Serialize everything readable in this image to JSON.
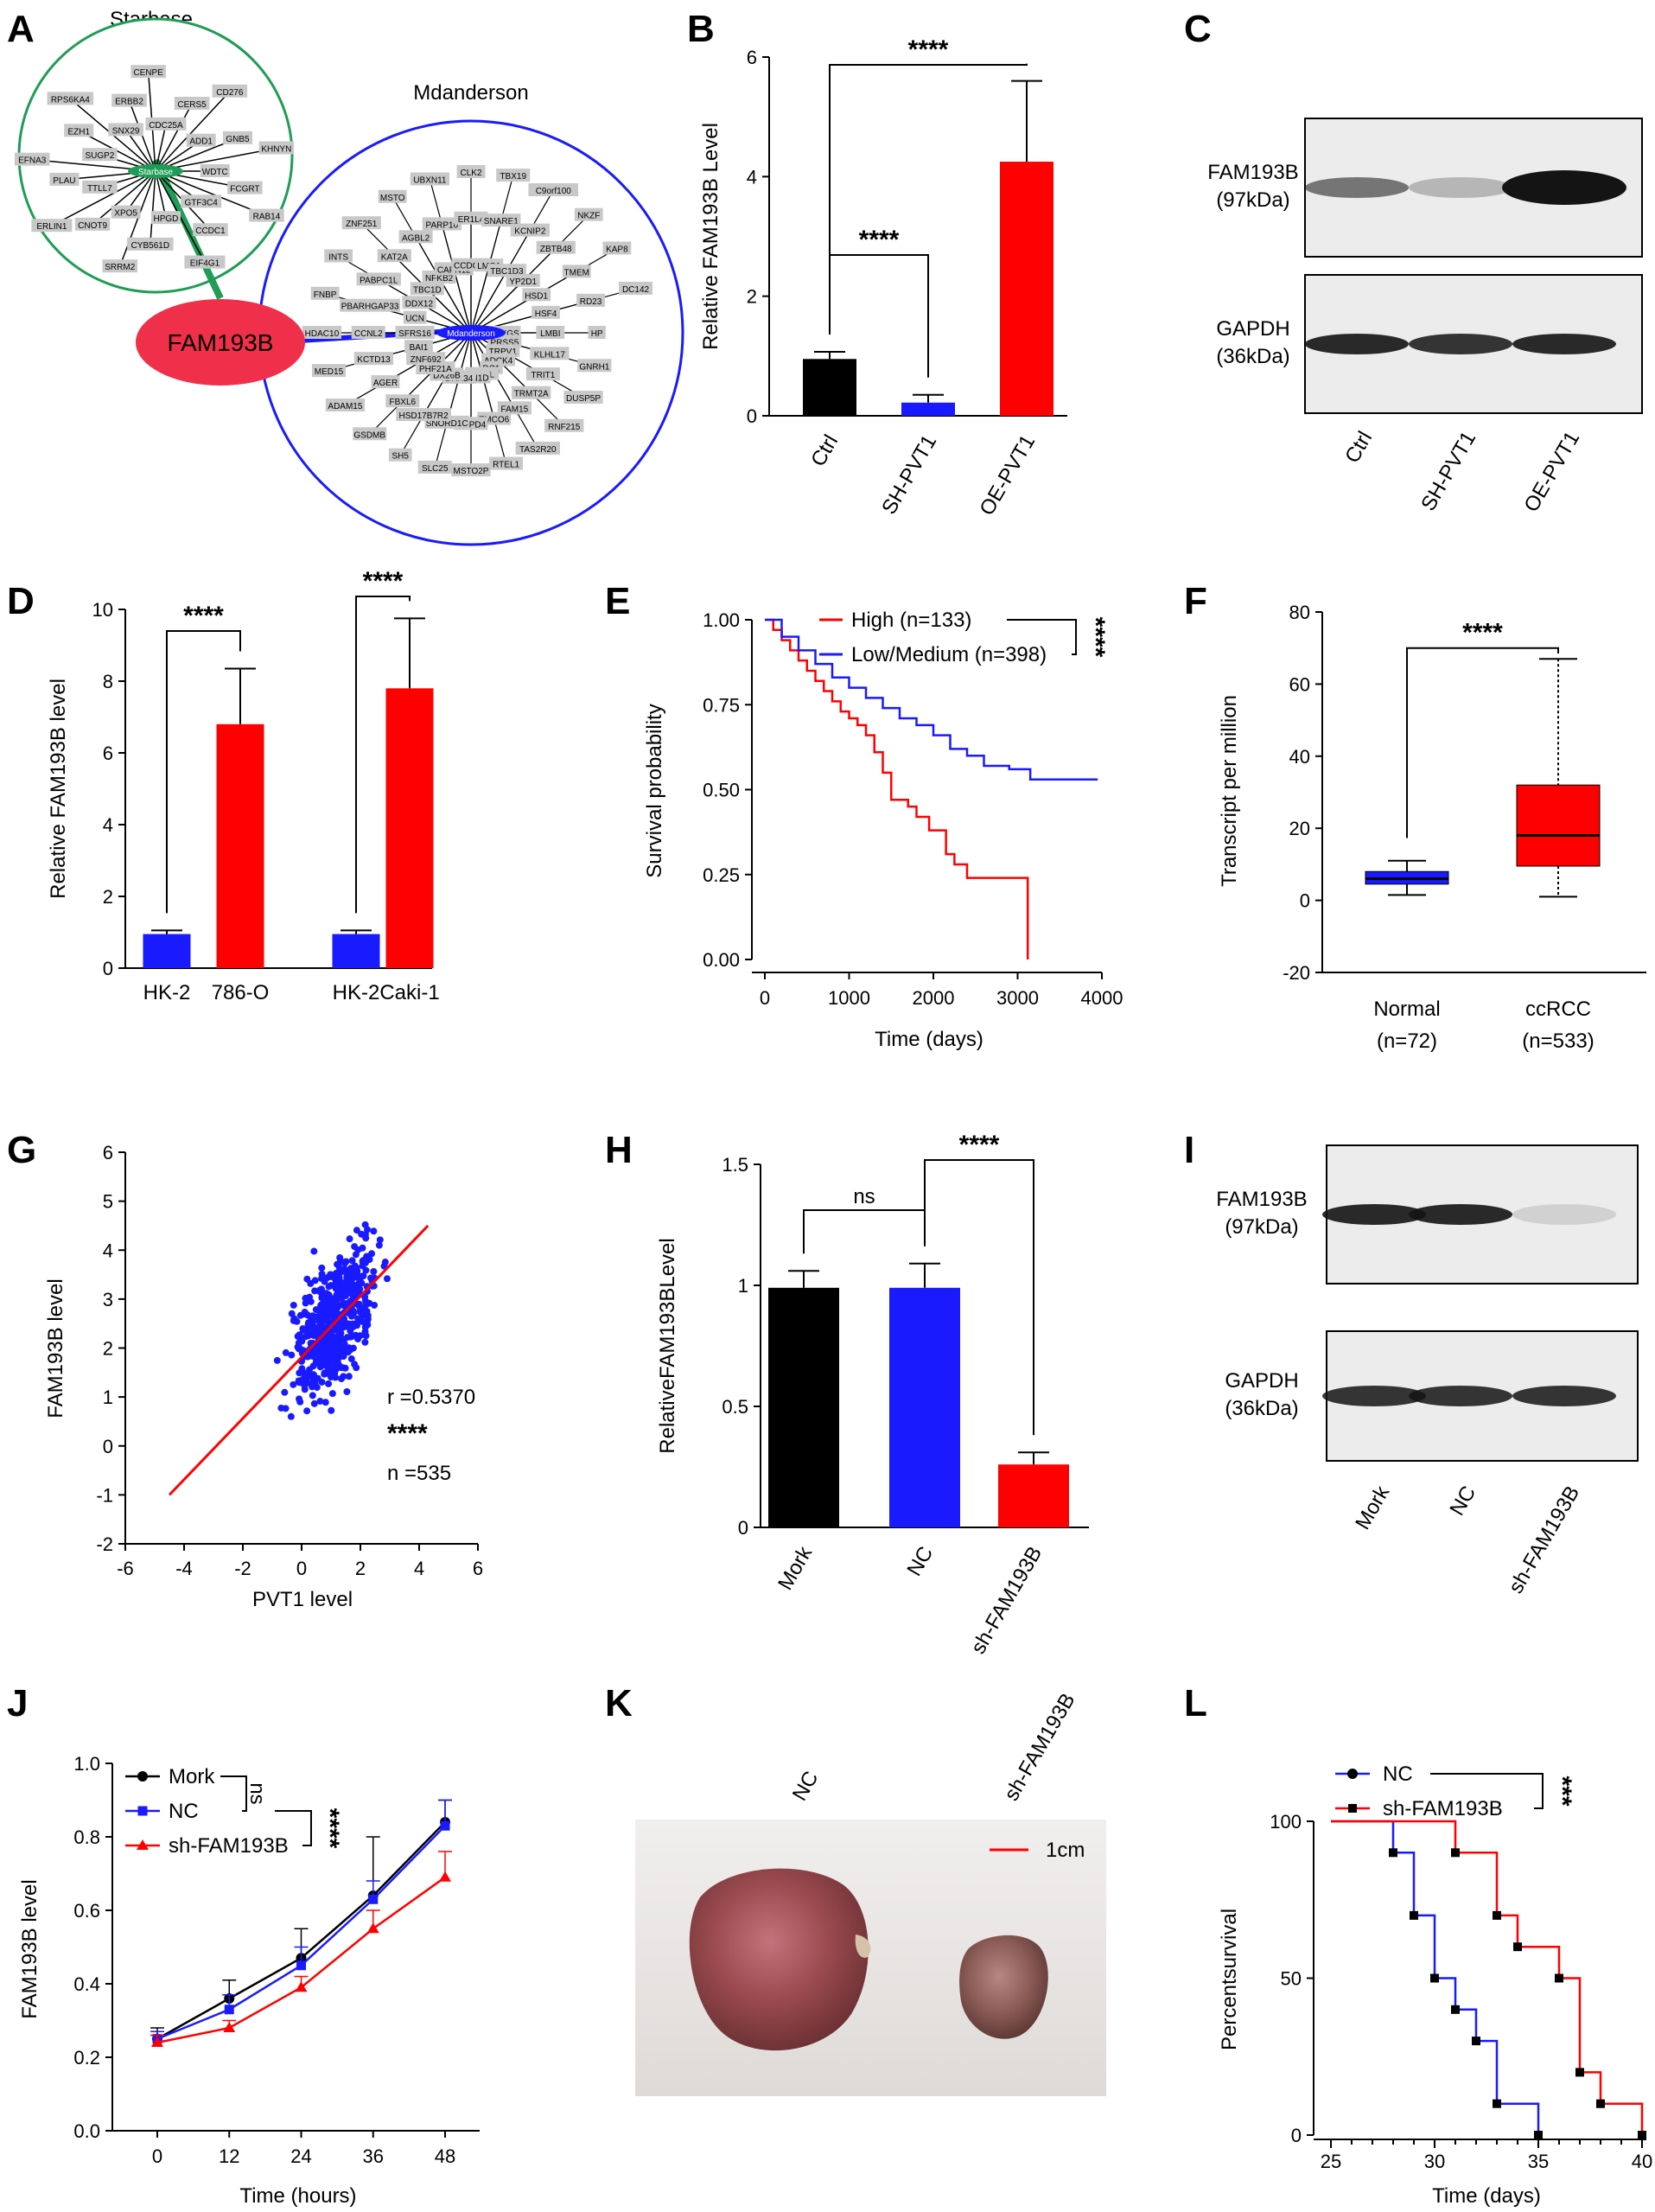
{
  "panel_letters": [
    "A",
    "B",
    "C",
    "D",
    "E",
    "F",
    "G",
    "H",
    "I",
    "J",
    "K",
    "L"
  ],
  "colors": {
    "black": "#000000",
    "blue": "#1a1aff",
    "red": "#ff0000",
    "green": "#1f9c55",
    "node_gray": "#c8c8c8",
    "blot_bg": "#ececec"
  },
  "chart_data": [
    {
      "panel": "A",
      "type": "network",
      "starbase": {
        "title": "Starbase",
        "center": "Starbase",
        "nodes": [
          "WDTC",
          "FCGRT",
          "RAB14",
          "GTF3C4",
          "CCDC1",
          "EIF4G1",
          "HPGD",
          "CYB561D",
          "SRRM2",
          "XPO5",
          "CNOT9",
          "ERLIN1",
          "TTLL7",
          "PLAU",
          "EFNA3",
          "SUGP2",
          "EZH1",
          "RPS6KA4",
          "SNX29",
          "ERBB2",
          "CENPE",
          "CDC25A",
          "CERS5",
          "CD276",
          "ADD1",
          "GNB5",
          "KHNYN"
        ]
      },
      "mdanderson": {
        "title": "Mdanderson",
        "center": "Mdanderson",
        "nodes": [
          "CRYGS",
          "PRSS5",
          "TRPV1",
          "ADCK4",
          "DC1",
          "PPIEL",
          "SCNN1D",
          "DHX34",
          "DX26B",
          "PHF21A",
          "ZNF692",
          "BAI1",
          "SFRS16",
          "UCN",
          "DDX12",
          "TBC1D",
          "NFKB2",
          "CAPN12",
          "CCDC57",
          "LMO1",
          "TBC1D3",
          "YP2D1",
          "HSD1",
          "HSF4",
          "LMBI",
          "KLHL17",
          "TRIT1",
          "TRMT2A",
          "FAM15",
          "TMCO6",
          "SMPD4",
          "SNORD1C",
          "HSD17B7R2",
          "FBXL6",
          "AGER",
          "KCTD13",
          "CCNL2",
          "PBARHGAP33",
          "PABPC1L",
          "KAT2A",
          "AGBL2",
          "PARP10",
          "ER1L4",
          "SNARE1",
          "KCNIP2",
          "ZBTB48",
          "TMEM",
          "RD23",
          "HP",
          "GNRH1",
          "DUSP5P",
          "RNF215",
          "TAS2R20",
          "RTEL1",
          "MSTO2P",
          "SLC25",
          "SH5",
          "GSDMB",
          "ADAM15",
          "MED15",
          "HDAC10",
          "FNBP",
          "INTS",
          "ZNF251",
          "MSTO",
          "UBXN11",
          "CLK2",
          "TBX19",
          "C9orf100",
          "NKZF",
          "KAP8",
          "DC142"
        ]
      },
      "hub": "FAM193B"
    },
    {
      "panel": "B",
      "type": "bar",
      "ylabel": "Relative FAM193B Level",
      "ylim": [
        0,
        6
      ],
      "yticks": [
        0,
        2,
        4,
        6
      ],
      "categories": [
        "Ctrl",
        "SH-PVT1",
        "OE-PVT1"
      ],
      "values": [
        0.95,
        0.22,
        4.25
      ],
      "errors": [
        0.12,
        0.13,
        1.35
      ],
      "colors": [
        "#000000",
        "#1a1aff",
        "#ff0000"
      ],
      "comparisons": [
        {
          "a": 0,
          "b": 1,
          "label": "****"
        },
        {
          "a": 0,
          "b": 2,
          "label": "****"
        }
      ]
    },
    {
      "panel": "C",
      "type": "blot",
      "rows": [
        {
          "label1": "FAM193B",
          "label2": "(97kDa)",
          "bands": [
            0.55,
            0.25,
            1.0
          ]
        },
        {
          "label1": "GAPDH",
          "label2": "(36kDa)",
          "bands": [
            0.9,
            0.85,
            0.9
          ]
        }
      ],
      "lanes": [
        "Ctrl",
        "SH-PVT1",
        "OE-PVT1"
      ]
    },
    {
      "panel": "D",
      "type": "bar",
      "ylabel": "Relative FAM193B level",
      "ylim": [
        0,
        10
      ],
      "yticks": [
        0,
        2,
        4,
        6,
        8,
        10
      ],
      "categories": [
        "HK-2",
        "786-O",
        "HK-2",
        "Caki-1"
      ],
      "values": [
        0.95,
        6.8,
        0.95,
        7.8
      ],
      "errors": [
        0.1,
        1.55,
        0.1,
        1.95
      ],
      "colors": [
        "#1a1aff",
        "#ff0000",
        "#1a1aff",
        "#ff0000"
      ],
      "comparisons": [
        {
          "a": 0,
          "b": 1,
          "label": "****"
        },
        {
          "a": 2,
          "b": 3,
          "label": "****"
        }
      ]
    },
    {
      "panel": "E",
      "type": "line",
      "xlabel": "Time (days)",
      "ylabel": "Survival probability",
      "xlim": [
        0,
        4000
      ],
      "ylim": [
        0,
        1
      ],
      "xticks": [
        0,
        1000,
        2000,
        3000,
        4000
      ],
      "yticks": [
        0,
        0.25,
        0.5,
        0.75,
        1
      ],
      "ytick_labels": [
        "0.00",
        "0.25",
        "0.50",
        "0.75",
        "1.00"
      ],
      "series": [
        {
          "name": "High (n=133)",
          "color": "#ff0000",
          "points": [
            [
              0,
              1
            ],
            [
              100,
              0.97
            ],
            [
              200,
              0.94
            ],
            [
              300,
              0.91
            ],
            [
              400,
              0.88
            ],
            [
              500,
              0.85
            ],
            [
              600,
              0.82
            ],
            [
              700,
              0.79
            ],
            [
              800,
              0.76
            ],
            [
              900,
              0.73
            ],
            [
              1000,
              0.71
            ],
            [
              1100,
              0.69
            ],
            [
              1200,
              0.66
            ],
            [
              1300,
              0.61
            ],
            [
              1400,
              0.55
            ],
            [
              1500,
              0.47
            ],
            [
              1700,
              0.45
            ],
            [
              1800,
              0.42
            ],
            [
              1950,
              0.38
            ],
            [
              2150,
              0.31
            ],
            [
              2250,
              0.28
            ],
            [
              2400,
              0.24
            ],
            [
              2550,
              0.24
            ],
            [
              3100,
              0.24
            ],
            [
              3120,
              0
            ]
          ]
        },
        {
          "name": "Low/Medium (n=398)",
          "color": "#1a1aff",
          "points": [
            [
              0,
              1
            ],
            [
              200,
              0.95
            ],
            [
              400,
              0.91
            ],
            [
              600,
              0.87
            ],
            [
              800,
              0.83
            ],
            [
              1000,
              0.8
            ],
            [
              1200,
              0.77
            ],
            [
              1400,
              0.74
            ],
            [
              1600,
              0.71
            ],
            [
              1800,
              0.69
            ],
            [
              2000,
              0.66
            ],
            [
              2200,
              0.62
            ],
            [
              2400,
              0.6
            ],
            [
              2600,
              0.57
            ],
            [
              2900,
              0.56
            ],
            [
              3150,
              0.53
            ],
            [
              3500,
              0.53
            ],
            [
              3950,
              0.53
            ]
          ]
        }
      ],
      "stat": "****"
    },
    {
      "panel": "F",
      "type": "box",
      "ylabel": "Transcript per million",
      "ylim": [
        -20,
        80
      ],
      "yticks": [
        -20,
        0,
        20,
        40,
        60,
        80
      ],
      "categories": [
        "Normal",
        "ccRCC"
      ],
      "subcategories": [
        "(n=72)",
        "(n=533)"
      ],
      "boxes": [
        {
          "min": 1.5,
          "q1": 4.5,
          "median": 6,
          "q3": 8,
          "max": 11,
          "color": "#1a1aff"
        },
        {
          "min": 1,
          "q1": 9.5,
          "median": 18,
          "q3": 32,
          "max": 67,
          "color": "#ff0000"
        }
      ],
      "stat": "****"
    },
    {
      "panel": "G",
      "type": "scatter",
      "xlabel": "PVT1 level",
      "ylabel": "FAM193B level",
      "xlim": [
        -6,
        6
      ],
      "ylim": [
        -2,
        6
      ],
      "xticks": [
        -6,
        -4,
        -2,
        0,
        2,
        4,
        6
      ],
      "yticks": [
        -2,
        -1,
        0,
        1,
        2,
        3,
        4,
        5,
        6
      ],
      "regression": [
        [
          -4.5,
          -1
        ],
        [
          4.3,
          4.5
        ]
      ],
      "annotations": [
        "r =0.5370",
        "****",
        "n =535"
      ]
    },
    {
      "panel": "H",
      "type": "bar",
      "ylabel": "RelativeFAM193BLevel",
      "ylim": [
        0,
        1.5
      ],
      "yticks": [
        0,
        0.5,
        1,
        1.5
      ],
      "ytick_labels": [
        "0.0",
        "0.5",
        "1.0",
        "1.5"
      ],
      "categories": [
        "Mork",
        "NC",
        "sh-FAM193B"
      ],
      "values": [
        0.99,
        0.99,
        0.26
      ],
      "errors": [
        0.07,
        0.1,
        0.05
      ],
      "colors": [
        "#000000",
        "#1a1aff",
        "#ff0000"
      ],
      "comparisons": [
        {
          "a": 0,
          "b": 1,
          "label": "ns"
        },
        {
          "a": 1,
          "b": 2,
          "label": "****"
        }
      ]
    },
    {
      "panel": "I",
      "type": "blot",
      "rows": [
        {
          "label1": "FAM193B",
          "label2": "(97kDa)",
          "bands": [
            0.9,
            0.9,
            0.12
          ]
        },
        {
          "label1": "GAPDH",
          "label2": "(36kDa)",
          "bands": [
            0.85,
            0.85,
            0.85
          ]
        }
      ],
      "lanes": [
        "Mork",
        "NC",
        "sh-FAM193B"
      ]
    },
    {
      "panel": "J",
      "type": "line",
      "xlabel": "Time (hours)",
      "ylabel": "FAM193B level",
      "xlim": [
        -6,
        54
      ],
      "ylim": [
        0,
        1
      ],
      "xticks": [
        0,
        12,
        24,
        36,
        48
      ],
      "yticks": [
        0,
        0.2,
        0.4,
        0.6,
        0.8,
        1
      ],
      "ytick_labels": [
        "0.0",
        "0.2",
        "0.4",
        "0.6",
        "0.8",
        "1.0"
      ],
      "x": [
        0,
        12,
        24,
        36,
        48
      ],
      "series": [
        {
          "name": "Mork",
          "color": "#000000",
          "values": [
            0.25,
            0.36,
            0.47,
            0.64,
            0.84
          ],
          "errors": [
            0.03,
            0.05,
            0.08,
            0.16,
            0.06
          ]
        },
        {
          "name": "NC",
          "color": "#1a1aff",
          "values": [
            0.25,
            0.33,
            0.45,
            0.63,
            0.83
          ],
          "errors": [
            0.02,
            0.04,
            0.05,
            0.05,
            0.07
          ]
        },
        {
          "name": "sh-FAM193B",
          "color": "#ff0000",
          "values": [
            0.24,
            0.28,
            0.39,
            0.55,
            0.69
          ],
          "errors": [
            0.02,
            0.02,
            0.03,
            0.05,
            0.07
          ]
        }
      ],
      "stats": [
        "ns",
        "****"
      ]
    },
    {
      "panel": "K",
      "type": "photo",
      "labels": [
        "NC",
        "sh-FAM193B"
      ],
      "scale_label": "1cm"
    },
    {
      "panel": "L",
      "type": "survival",
      "xlabel": "Time (days)",
      "ylabel": "Percentsurvival",
      "xlim": [
        25,
        40
      ],
      "ylim": [
        0,
        100
      ],
      "xticks": [
        25,
        30,
        35,
        40
      ],
      "yticks": [
        0,
        50,
        100
      ],
      "series": [
        {
          "name": "NC",
          "color": "#1a1aff",
          "steps": [
            [
              25,
              100
            ],
            [
              28,
              100
            ],
            [
              28,
              90
            ],
            [
              29,
              90
            ],
            [
              29,
              70
            ],
            [
              30,
              70
            ],
            [
              30,
              50
            ],
            [
              31,
              50
            ],
            [
              31,
              40
            ],
            [
              32,
              40
            ],
            [
              32,
              30
            ],
            [
              33,
              30
            ],
            [
              33,
              10
            ],
            [
              35,
              10
            ],
            [
              35,
              0
            ]
          ],
          "ticks": [
            [
              28,
              90
            ],
            [
              29,
              70
            ],
            [
              30,
              50
            ],
            [
              31,
              40
            ],
            [
              32,
              30
            ],
            [
              33,
              10
            ],
            [
              35,
              0
            ]
          ]
        },
        {
          "name": "sh-FAM193B",
          "color": "#ff0000",
          "steps": [
            [
              25,
              100
            ],
            [
              31,
              100
            ],
            [
              31,
              90
            ],
            [
              33,
              90
            ],
            [
              33,
              70
            ],
            [
              34,
              70
            ],
            [
              34,
              60
            ],
            [
              36,
              60
            ],
            [
              36,
              50
            ],
            [
              37,
              50
            ],
            [
              37,
              20
            ],
            [
              38,
              20
            ],
            [
              38,
              10
            ],
            [
              40,
              10
            ],
            [
              40,
              0
            ]
          ],
          "ticks": [
            [
              31,
              90
            ],
            [
              33,
              70
            ],
            [
              34,
              60
            ],
            [
              36,
              50
            ],
            [
              37,
              20
            ],
            [
              38,
              10
            ],
            [
              40,
              0
            ]
          ]
        }
      ],
      "stat": "***"
    }
  ]
}
